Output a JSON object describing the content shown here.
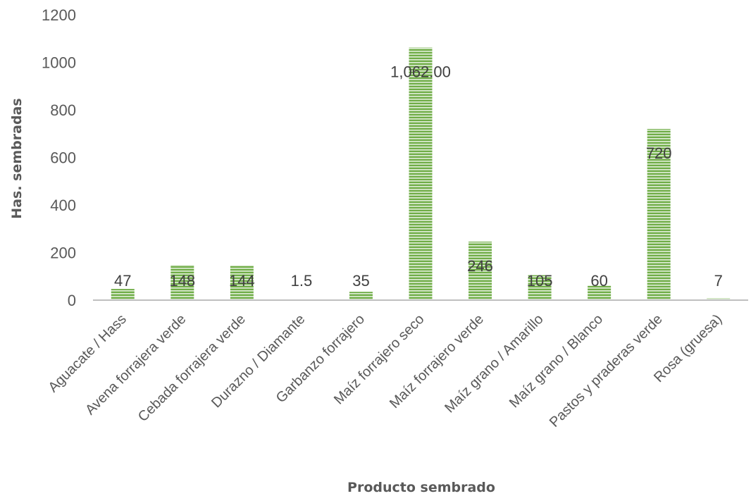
{
  "chart_data": {
    "type": "bar",
    "title": "",
    "xlabel": "Producto sembrado",
    "ylabel": "Has. sembradas",
    "ylim": [
      0,
      1200
    ],
    "y_ticks": [
      "0",
      "200",
      "400",
      "600",
      "800",
      "1000",
      "1200"
    ],
    "grid": false,
    "legend": "none",
    "categories": [
      "Aguacate / Hass",
      "Avena forrajera verde",
      "Cebada forrajera verde",
      "Durazno / Diamante",
      "Garbanzo forrajero",
      "Maíz forrajero seco",
      "Maíz forrajero verde",
      "Maíz grano / Amarillo",
      "Maíz grano / Blanco",
      "Pastos y praderas verde",
      "Rosa (gruesa)"
    ],
    "values": [
      47,
      148,
      144,
      1.5,
      35,
      1062,
      246,
      105,
      60,
      720,
      7
    ],
    "data_labels": [
      "47",
      "148",
      "144",
      "1.5",
      "35",
      "1,062.00",
      "246",
      "105",
      "60",
      "720",
      "7"
    ],
    "colors": {
      "bar_fill": "#70AD47",
      "bar_stripe": "#E2EFDA",
      "axis": "#BFBFBF",
      "text": "#595959"
    }
  }
}
